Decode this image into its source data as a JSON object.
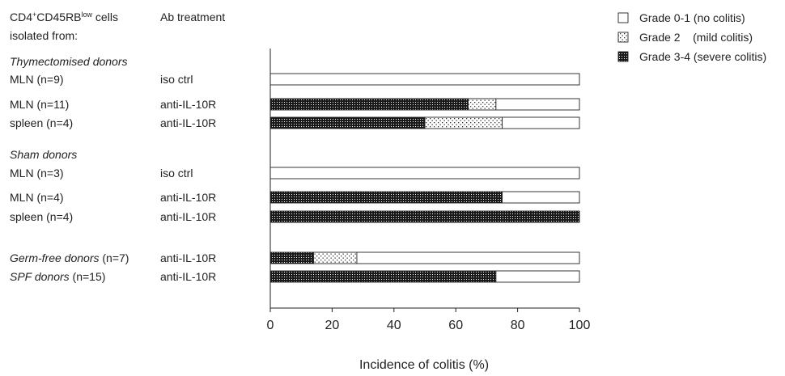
{
  "chart_data": {
    "type": "bar",
    "orientation": "horizontal",
    "stacked": true,
    "header": {
      "cells_prefix": "CD4",
      "cells_sup1": "+",
      "cells_mid": "CD45RB",
      "cells_sup2": "low",
      "cells_suffix": " cells",
      "cells_line2": "isolated from:",
      "treatment": "Ab treatment"
    },
    "groups": [
      {
        "label": "Thymectomised donors",
        "row_index": 0
      },
      {
        "label": "Sham donors",
        "row_index": 3
      }
    ],
    "rows": [
      {
        "source": "MLN (n=9)",
        "italic_prefix": "",
        "treatment": "iso ctrl",
        "values": [
          0,
          0,
          100
        ]
      },
      {
        "source": "MLN (n=11)",
        "italic_prefix": "",
        "treatment": "anti-IL-10R",
        "values": [
          64,
          9,
          27
        ]
      },
      {
        "source": "spleen (n=4)",
        "italic_prefix": "",
        "treatment": "anti-IL-10R",
        "values": [
          50,
          25,
          25
        ]
      },
      {
        "source": "MLN (n=3)",
        "italic_prefix": "",
        "treatment": "iso ctrl",
        "values": [
          0,
          0,
          100
        ]
      },
      {
        "source": "MLN (n=4)",
        "italic_prefix": "",
        "treatment": "anti-IL-10R",
        "values": [
          75,
          0,
          25
        ]
      },
      {
        "source": "spleen (n=4)",
        "italic_prefix": "",
        "treatment": "anti-IL-10R",
        "values": [
          100,
          0,
          0
        ]
      },
      {
        "source": " (n=7)",
        "italic_prefix": "Germ-free donors",
        "treatment": "anti-IL-10R",
        "values": [
          14,
          14,
          72
        ]
      },
      {
        "source": " (n=15)",
        "italic_prefix": "SPF donors",
        "treatment": "anti-IL-10R",
        "values": [
          73,
          0,
          27
        ]
      }
    ],
    "series": [
      {
        "name": "Grade 3-4 (severe colitis)",
        "pattern": "dense-dots"
      },
      {
        "name": "Grade 2    (mild colitis)",
        "pattern": "sparse-dots"
      },
      {
        "name": "Grade 0-1 (no colitis)",
        "pattern": "empty"
      }
    ],
    "legend_order": [
      "Grade 0-1 (no colitis)",
      "Grade 2    (mild colitis)",
      "Grade 3-4 (severe colitis)"
    ],
    "legend_position": "top-right",
    "xlabel": "Incidence of colitis (%)",
    "xlim": [
      0,
      100
    ],
    "xticks": [
      "0",
      "20",
      "40",
      "60",
      "80",
      "100"
    ],
    "grid": false
  }
}
